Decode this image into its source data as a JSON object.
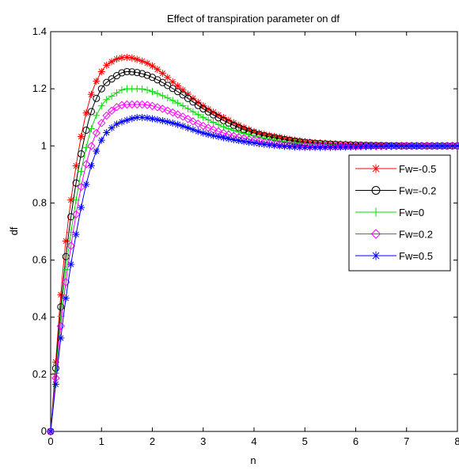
{
  "chart_data": {
    "type": "line",
    "title": "Effect of transpiration parameter on df",
    "xlabel": "n",
    "ylabel": "df",
    "xlim": [
      0,
      8
    ],
    "ylim": [
      0,
      1.4
    ],
    "xticks": [
      "0",
      "1",
      "2",
      "3",
      "4",
      "5",
      "6",
      "7",
      "8"
    ],
    "yticks": [
      "0",
      "0.2",
      "0.4",
      "0.6",
      "0.8",
      "1",
      "1.2",
      "1.4"
    ],
    "grid": false,
    "legend_position": "right",
    "x": [
      0,
      0.25,
      0.5,
      0.75,
      1,
      1.25,
      1.5,
      1.75,
      2,
      2.5,
      3,
      3.5,
      4,
      4.5,
      5,
      5.5,
      6,
      6.5,
      7,
      7.5,
      8
    ],
    "series": [
      {
        "name": "Fw=-0.5",
        "color": "#ff0000",
        "marker": "star",
        "values": [
          0,
          0.58,
          0.93,
          1.15,
          1.26,
          1.3,
          1.31,
          1.3,
          1.28,
          1.21,
          1.14,
          1.09,
          1.05,
          1.03,
          1.015,
          1.008,
          1.004,
          1.002,
          1.001,
          1.0,
          1.0
        ]
      },
      {
        "name": "Fw=-0.2",
        "color": "#000000",
        "marker": "circle",
        "values": [
          0,
          0.53,
          0.87,
          1.09,
          1.2,
          1.24,
          1.26,
          1.255,
          1.24,
          1.19,
          1.13,
          1.08,
          1.045,
          1.025,
          1.012,
          1.006,
          1.003,
          1.001,
          1.0,
          1.0,
          1.0
        ]
      },
      {
        "name": "Fw=0",
        "color": "#00dd00",
        "marker": "plus",
        "values": [
          0,
          0.49,
          0.81,
          1.03,
          1.14,
          1.18,
          1.2,
          1.2,
          1.19,
          1.15,
          1.1,
          1.06,
          1.035,
          1.018,
          1.008,
          1.004,
          1.002,
          1.001,
          1.0,
          1.0,
          1.0
        ]
      },
      {
        "name": "Fw=0.2",
        "color": "#ff00ff",
        "marker": "diamond",
        "values": [
          0,
          0.45,
          0.76,
          0.97,
          1.08,
          1.13,
          1.145,
          1.145,
          1.14,
          1.11,
          1.07,
          1.04,
          1.02,
          1.005,
          1.0,
          0.999,
          0.999,
          0.999,
          1.0,
          1.0,
          1.0
        ]
      },
      {
        "name": "Fw=0.5",
        "color": "#0000ff",
        "marker": "star",
        "values": [
          0,
          0.4,
          0.69,
          0.9,
          1.02,
          1.07,
          1.09,
          1.1,
          1.095,
          1.075,
          1.045,
          1.025,
          1.01,
          1.0,
          0.995,
          0.995,
          0.997,
          0.999,
          1.0,
          1.0,
          1.0
        ]
      }
    ]
  }
}
